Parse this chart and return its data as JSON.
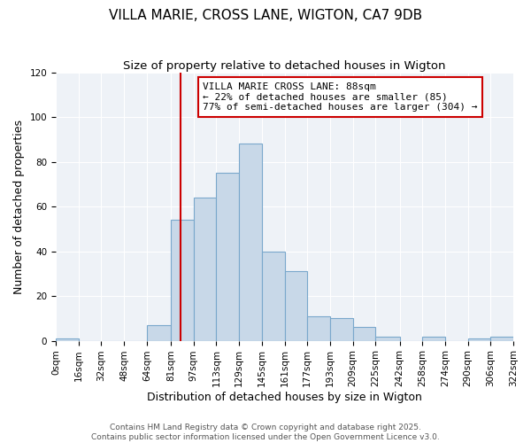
{
  "title": "VILLA MARIE, CROSS LANE, WIGTON, CA7 9DB",
  "subtitle": "Size of property relative to detached houses in Wigton",
  "xlabel": "Distribution of detached houses by size in Wigton",
  "ylabel": "Number of detached properties",
  "bin_edges": [
    0,
    16,
    32,
    48,
    64,
    81,
    97,
    113,
    129,
    145,
    161,
    177,
    193,
    209,
    225,
    242,
    258,
    274,
    290,
    306,
    322
  ],
  "bin_labels": [
    "0sqm",
    "16sqm",
    "32sqm",
    "48sqm",
    "64sqm",
    "81sqm",
    "97sqm",
    "113sqm",
    "129sqm",
    "145sqm",
    "161sqm",
    "177sqm",
    "193sqm",
    "209sqm",
    "225sqm",
    "242sqm",
    "258sqm",
    "274sqm",
    "290sqm",
    "306sqm",
    "322sqm"
  ],
  "counts": [
    1,
    0,
    0,
    0,
    7,
    54,
    64,
    75,
    88,
    40,
    31,
    11,
    10,
    6,
    2,
    0,
    2,
    0,
    1,
    2
  ],
  "bar_facecolor": "#c8d8e8",
  "bar_edgecolor": "#7aa8cc",
  "vline_x": 88,
  "vline_color": "#cc0000",
  "annotation_text": "VILLA MARIE CROSS LANE: 88sqm\n← 22% of detached houses are smaller (85)\n77% of semi-detached houses are larger (304) →",
  "annotation_box_edgecolor": "#cc0000",
  "annotation_box_facecolor": "#ffffff",
  "ylim": [
    0,
    120
  ],
  "yticks": [
    0,
    20,
    40,
    60,
    80,
    100,
    120
  ],
  "bg_color": "#eef2f7",
  "footer1": "Contains HM Land Registry data © Crown copyright and database right 2025.",
  "footer2": "Contains public sector information licensed under the Open Government Licence v3.0.",
  "title_fontsize": 11,
  "subtitle_fontsize": 9.5,
  "axis_label_fontsize": 9,
  "tick_fontsize": 7.5,
  "annotation_fontsize": 8,
  "footer_fontsize": 6.5
}
